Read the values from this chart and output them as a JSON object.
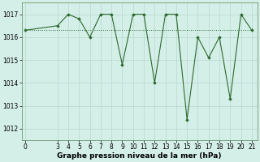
{
  "x_main": [
    0,
    3,
    4,
    5,
    6,
    7,
    8,
    9,
    10,
    11,
    12,
    13,
    14,
    15,
    16,
    17,
    18,
    19,
    20,
    21
  ],
  "y_main": [
    1016.3,
    1016.5,
    1017.0,
    1016.8,
    1016.0,
    1017.0,
    1017.0,
    1014.8,
    1017.0,
    1017.0,
    1014.0,
    1017.0,
    1017.0,
    1012.4,
    1016.0,
    1015.1,
    1016.0,
    1013.3,
    1017.0,
    1016.3
  ],
  "x_flat": [
    0,
    3,
    4,
    5,
    6,
    7,
    8,
    9,
    10,
    11,
    12,
    13,
    14,
    15,
    16,
    17,
    18,
    19,
    20,
    21
  ],
  "y_flat": [
    1016.3,
    1016.3,
    1016.3,
    1016.3,
    1016.3,
    1016.3,
    1016.3,
    1016.3,
    1016.3,
    1016.3,
    1016.3,
    1016.3,
    1016.3,
    1016.3,
    1016.3,
    1016.3,
    1016.3,
    1016.3,
    1016.3,
    1016.3
  ],
  "line_color": "#2d6a2d",
  "marker_color": "#2d6a2d",
  "bg_color": "#d4eee8",
  "grid_color": "#b8d8d0",
  "xlabel": "Graphe pression niveau de la mer (hPa)",
  "yticks": [
    1012,
    1013,
    1014,
    1015,
    1016,
    1017
  ],
  "xticks": [
    0,
    3,
    4,
    5,
    6,
    7,
    8,
    9,
    10,
    11,
    12,
    13,
    14,
    15,
    16,
    17,
    18,
    19,
    20,
    21
  ],
  "ylim": [
    1011.5,
    1017.5
  ],
  "xlim": [
    -0.3,
    21.5
  ],
  "tick_fontsize": 5.5,
  "xlabel_fontsize": 6.5
}
